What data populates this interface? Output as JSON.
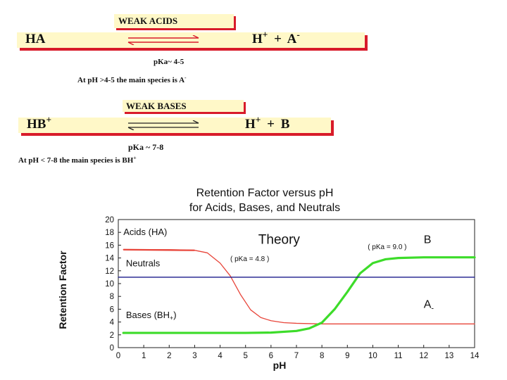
{
  "weak_acids": {
    "title": "WEAK ACIDS",
    "left_species": "HA",
    "right_h": "H",
    "right_h_charge": "+",
    "plus": "+",
    "right_base": "A",
    "right_base_charge": "-",
    "pka": "pKa~ 4-5",
    "note": "At pH >4-5  the main species is A",
    "note_charge": "-"
  },
  "weak_bases": {
    "title": "WEAK BASES",
    "left_species": "HB",
    "left_charge": "+",
    "right_h": "H",
    "right_h_charge": "+",
    "plus": "+",
    "right_base": "B",
    "pka": "pKa ~  7-8",
    "note": "At pH < 7-8 the main species is BH",
    "note_charge": "+"
  },
  "colors": {
    "highlight": "#fff8c8",
    "accent_red": "#d81b2a",
    "acid_curve": "#e8453a",
    "base_curve": "#3ddc2a",
    "neutral_line": "#1a1a8c"
  },
  "chart_data": {
    "type": "line",
    "title": "Retention Factor versus pH",
    "subtitle": "for Acids, Bases, and Neutrals",
    "xlabel": "pH",
    "ylabel": "Retention Factor",
    "xlim": [
      0,
      14
    ],
    "ylim": [
      0,
      20
    ],
    "xticks": [
      0,
      1,
      2,
      3,
      4,
      5,
      6,
      7,
      8,
      9,
      10,
      11,
      12,
      13,
      14
    ],
    "yticks": [
      0,
      2,
      4,
      6,
      8,
      10,
      12,
      14,
      16,
      18,
      20
    ],
    "grid": false,
    "series": [
      {
        "name": "Acids (HA)",
        "color": "#e8453a",
        "x": [
          0.2,
          1,
          2,
          3,
          3.5,
          4,
          4.4,
          4.8,
          5.2,
          5.6,
          6,
          6.5,
          7,
          8,
          10,
          12,
          14
        ],
        "y": [
          15.3,
          15.3,
          15.3,
          15.2,
          14.8,
          13.2,
          11.2,
          8.3,
          5.9,
          4.7,
          4.2,
          3.9,
          3.8,
          3.7,
          3.7,
          3.7,
          3.7
        ]
      },
      {
        "name": "Bases (BH+)",
        "color": "#3ddc2a",
        "x": [
          0.2,
          1,
          2,
          3,
          4,
          5,
          6,
          7,
          7.5,
          8,
          8.5,
          9,
          9.5,
          10,
          10.5,
          11,
          12,
          13,
          14
        ],
        "y": [
          2.3,
          2.3,
          2.3,
          2.3,
          2.3,
          2.3,
          2.35,
          2.6,
          3.0,
          3.9,
          6.0,
          8.7,
          11.6,
          13.2,
          13.8,
          14.0,
          14.1,
          14.1,
          14.1
        ]
      },
      {
        "name": "Neutrals",
        "color": "#1a1a8c",
        "x": [
          0,
          14
        ],
        "y": [
          11,
          11
        ]
      }
    ],
    "annotations": {
      "acids": "Acids (HA)",
      "neutrals": "Neutrals",
      "bases": "Bases (BH",
      "bases_sub": "+",
      "bases_close": ")",
      "theory": "Theory",
      "b_label": "B",
      "a_label": "A",
      "a_sub": "-",
      "pka_acid": "( pKa = 4.8 )",
      "pka_base": "( pKa = 9.0 )"
    }
  }
}
